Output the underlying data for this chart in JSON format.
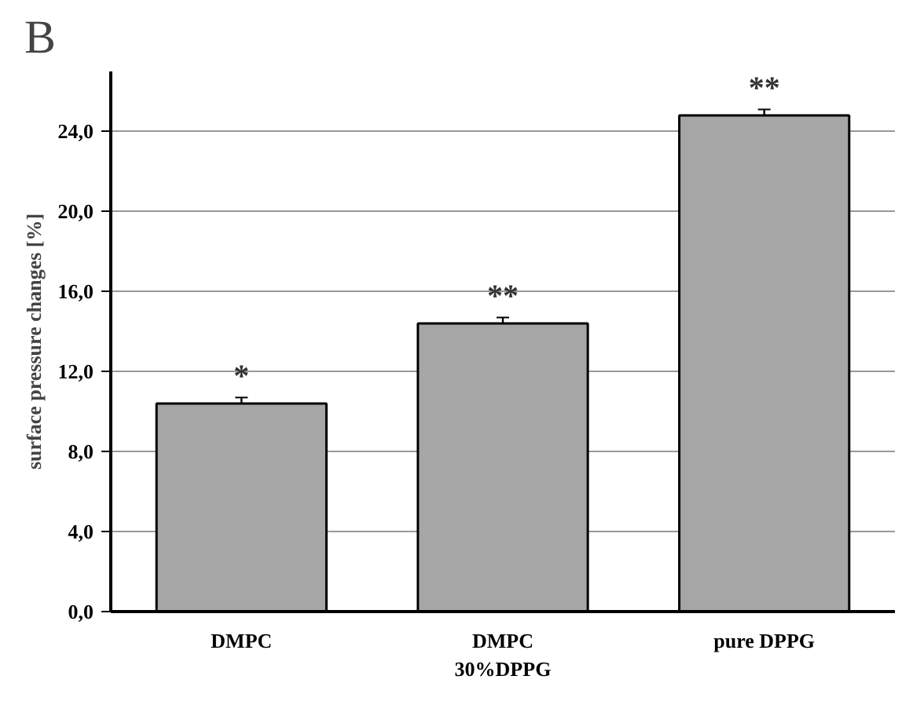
{
  "chart_data": {
    "type": "bar",
    "ylabel": "surface pressure changes [%]",
    "categories": [
      "DMPC",
      "DMPC\n30%DPPG",
      "pure DPPG"
    ],
    "values": [
      10.4,
      14.4,
      24.8
    ],
    "errors": [
      0.3,
      0.3,
      0.3
    ],
    "color": "#a6a6a6",
    "ylim": [
      0,
      27
    ],
    "yticks": [
      {
        "value": 0,
        "label": "0,0"
      },
      {
        "value": 4,
        "label": "4,0"
      },
      {
        "value": 8,
        "label": "8,0"
      },
      {
        "value": 12,
        "label": "12,0"
      },
      {
        "value": 16,
        "label": "16,0"
      },
      {
        "value": 20,
        "label": "20,0"
      },
      {
        "value": 24,
        "label": "24,0"
      }
    ],
    "grid": "y",
    "annotations": [
      "B",
      "*",
      "**",
      "**"
    ]
  }
}
